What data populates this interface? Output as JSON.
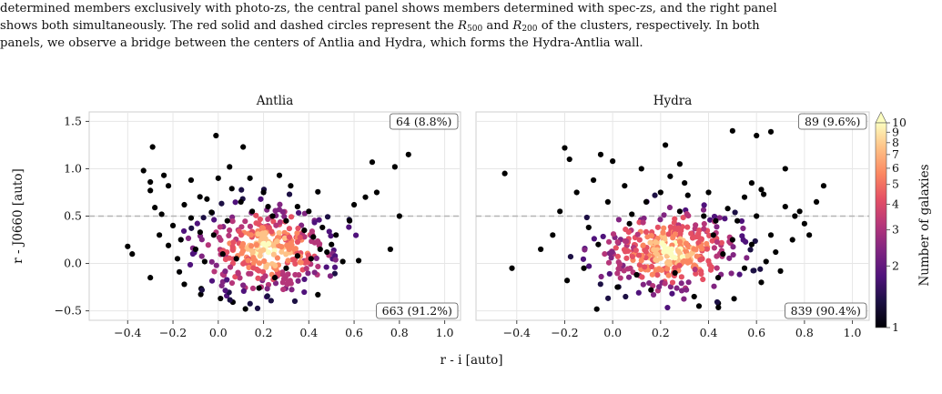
{
  "caption": {
    "line1": "determined members exclusively with photo-zs, the central panel shows members determined with spec-zs, and the right panel",
    "line2_a": "shows both simultaneously. The red solid and dashed circles represent the ",
    "r500": "R",
    "r500_sub": "500",
    "line2_b": " and ",
    "r200": "R",
    "r200_sub": "200",
    "line2_c": " of the clusters, respectively. In both",
    "line3": "panels, we observe a bridge between the centers of Antlia and Hydra, which forms the Hydra-Antlia wall."
  },
  "chart_data": [
    {
      "type": "scatter",
      "title": "Antlia",
      "xlabel": "r - i [auto]",
      "ylabel": "r - J0660 [auto]",
      "xlim": [
        -0.57,
        1.07
      ],
      "ylim": [
        -0.6,
        1.6
      ],
      "xticks": [
        "−0.4",
        "−0.2",
        "0.0",
        "0.2",
        "0.4",
        "0.6",
        "0.8",
        "1.0"
      ],
      "yticks": [
        "−0.5",
        "0.0",
        "0.5",
        "1.0",
        "1.5"
      ],
      "threshold_y": 0.5,
      "grid": true,
      "annotation_top": "64 (8.8%)",
      "annotation_bottom": "663 (91.2%)",
      "points": [
        [
          -0.4,
          0.18
        ],
        [
          -0.38,
          0.1
        ],
        [
          -0.33,
          0.98
        ],
        [
          -0.3,
          0.86
        ],
        [
          -0.29,
          1.23
        ],
        [
          -0.3,
          0.77
        ],
        [
          -0.28,
          0.59
        ],
        [
          -0.25,
          0.52
        ],
        [
          -0.24,
          0.93
        ],
        [
          -0.22,
          0.82
        ],
        [
          -0.2,
          0.4
        ],
        [
          -0.3,
          -0.15
        ],
        [
          -0.26,
          0.3
        ],
        [
          -0.22,
          0.19
        ],
        [
          -0.18,
          0.05
        ],
        [
          -0.15,
          -0.22
        ],
        [
          -0.12,
          0.48
        ],
        [
          -0.1,
          0.15
        ],
        [
          -0.05,
          0.68
        ],
        [
          -0.08,
          0.33
        ],
        [
          -0.03,
          0.54
        ],
        [
          -0.01,
          1.35
        ],
        [
          -0.02,
          0.3
        ],
        [
          0.0,
          0.9
        ],
        [
          0.01,
          -0.37
        ],
        [
          0.02,
          0.1
        ],
        [
          0.04,
          0.45
        ],
        [
          0.06,
          0.79
        ],
        [
          0.08,
          0.05
        ],
        [
          0.1,
          0.65
        ],
        [
          0.11,
          1.23
        ],
        [
          0.12,
          -0.48
        ],
        [
          0.14,
          0.9
        ],
        [
          0.15,
          0.55
        ],
        [
          0.18,
          -0.26
        ],
        [
          0.2,
          0.75
        ],
        [
          0.22,
          0.6
        ],
        [
          0.24,
          0.5
        ],
        [
          0.25,
          -0.15
        ],
        [
          0.27,
          0.93
        ],
        [
          0.3,
          0.45
        ],
        [
          0.32,
          0.82
        ],
        [
          0.35,
          0.6
        ],
        [
          0.38,
          0.35
        ],
        [
          0.4,
          0.55
        ],
        [
          0.42,
          0.28
        ],
        [
          0.44,
          -0.33
        ],
        [
          0.45,
          0.15
        ],
        [
          0.48,
          0.12
        ],
        [
          0.5,
          0.2
        ],
        [
          0.52,
          0.3
        ],
        [
          0.55,
          0.02
        ],
        [
          0.58,
          0.45
        ],
        [
          0.6,
          0.62
        ],
        [
          0.62,
          0.03
        ],
        [
          0.65,
          0.7
        ],
        [
          0.68,
          1.07
        ],
        [
          0.7,
          0.75
        ],
        [
          0.76,
          0.15
        ],
        [
          0.78,
          1.02
        ],
        [
          0.8,
          0.5
        ],
        [
          0.84,
          1.15
        ],
        [
          -0.15,
          0.62
        ],
        [
          -0.12,
          0.88
        ],
        [
          0.05,
          1.02
        ],
        [
          -0.06,
          0.02
        ],
        [
          0.3,
          -0.05
        ],
        [
          0.35,
          0.08
        ],
        [
          0.41,
          0.05
        ],
        [
          0.46,
          0.38
        ]
      ],
      "hex_density_peak": [
        0.22,
        0.15
      ],
      "hex_density_max": 10
    },
    {
      "type": "scatter",
      "title": "Hydra",
      "xlabel": "r - i [auto]",
      "ylabel": "",
      "xlim": [
        -0.57,
        1.07
      ],
      "ylim": [
        -0.6,
        1.6
      ],
      "xticks": [
        "−0.4",
        "−0.2",
        "0.0",
        "0.2",
        "0.4",
        "0.6",
        "0.8",
        "1.0"
      ],
      "yticks": [],
      "threshold_y": 0.5,
      "grid": true,
      "annotation_top": "89 (9.6%)",
      "annotation_bottom": "839 (90.4%)",
      "points": [
        [
          -0.45,
          0.95
        ],
        [
          -0.42,
          -0.05
        ],
        [
          -0.3,
          0.15
        ],
        [
          -0.25,
          0.3
        ],
        [
          -0.22,
          0.55
        ],
        [
          -0.2,
          1.22
        ],
        [
          -0.19,
          -0.18
        ],
        [
          -0.18,
          1.1
        ],
        [
          -0.15,
          0.75
        ],
        [
          -0.12,
          -0.05
        ],
        [
          -0.1,
          0.38
        ],
        [
          -0.08,
          0.88
        ],
        [
          -0.06,
          0.2
        ],
        [
          -0.02,
          0.65
        ],
        [
          0.0,
          1.08
        ],
        [
          0.02,
          -0.25
        ],
        [
          0.05,
          0.82
        ],
        [
          0.08,
          0.52
        ],
        [
          0.1,
          -0.12
        ],
        [
          0.12,
          1.0
        ],
        [
          0.14,
          0.65
        ],
        [
          0.16,
          -0.28
        ],
        [
          0.2,
          0.75
        ],
        [
          0.22,
          1.25
        ],
        [
          0.24,
          0.92
        ],
        [
          0.26,
          -0.1
        ],
        [
          0.28,
          0.55
        ],
        [
          0.3,
          0.85
        ],
        [
          0.34,
          -0.35
        ],
        [
          0.36,
          -0.45
        ],
        [
          0.38,
          0.5
        ],
        [
          0.4,
          0.75
        ],
        [
          0.42,
          0.3
        ],
        [
          0.44,
          -0.15
        ],
        [
          0.46,
          0.1
        ],
        [
          0.48,
          0.58
        ],
        [
          0.5,
          0.25
        ],
        [
          0.52,
          0.45
        ],
        [
          0.55,
          0.7
        ],
        [
          0.58,
          0.2
        ],
        [
          0.6,
          0.5
        ],
        [
          0.62,
          -0.2
        ],
        [
          0.64,
          0.02
        ],
        [
          0.66,
          0.3
        ],
        [
          0.68,
          0.12
        ],
        [
          0.7,
          -0.08
        ],
        [
          0.72,
          0.6
        ],
        [
          0.75,
          0.25
        ],
        [
          0.78,
          0.55
        ],
        [
          0.8,
          0.42
        ],
        [
          0.82,
          0.3
        ],
        [
          0.85,
          0.65
        ],
        [
          0.88,
          0.82
        ],
        [
          0.6,
          1.35
        ],
        [
          0.66,
          1.39
        ],
        [
          0.72,
          1.0
        ],
        [
          0.76,
          0.5
        ],
        [
          0.5,
          1.4
        ],
        [
          0.58,
          0.85
        ],
        [
          0.62,
          0.78
        ],
        [
          0.63,
          0.73
        ],
        [
          -0.05,
          1.15
        ],
        [
          0.28,
          1.05
        ],
        [
          0.07,
          0.42
        ],
        [
          0.43,
          0.45
        ],
        [
          0.55,
          -0.05
        ]
      ],
      "hex_density_peak": [
        0.24,
        0.12
      ],
      "hex_density_max": 10
    }
  ],
  "colorbar": {
    "label": "Number of galaxies",
    "ticks": [
      "1",
      "2",
      "3",
      "4",
      "5",
      "6",
      "7",
      "8",
      "9",
      "10"
    ],
    "min": 1,
    "max": 10,
    "scale": "log"
  }
}
